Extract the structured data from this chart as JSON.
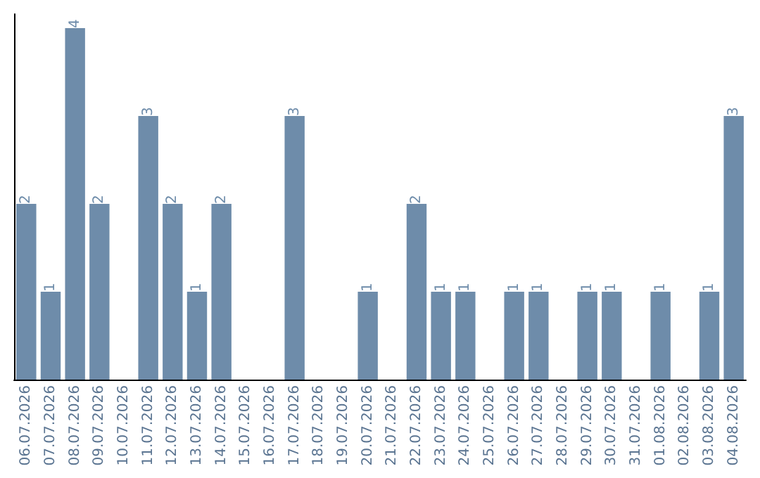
{
  "chart_data": {
    "type": "bar",
    "categories": [
      "06.07.2026",
      "07.07.2026",
      "08.07.2026",
      "09.07.2026",
      "10.07.2026",
      "11.07.2026",
      "12.07.2026",
      "13.07.2026",
      "14.07.2026",
      "15.07.2026",
      "16.07.2026",
      "17.07.2026",
      "18.07.2026",
      "19.07.2026",
      "20.07.2026",
      "21.07.2026",
      "22.07.2026",
      "23.07.2026",
      "24.07.2026",
      "25.07.2026",
      "26.07.2026",
      "27.07.2026",
      "28.07.2026",
      "29.07.2026",
      "30.07.2026",
      "31.07.2026",
      "01.08.2026",
      "02.08.2026",
      "03.08.2026",
      "04.08.2026"
    ],
    "values": [
      2,
      1,
      4,
      2,
      0,
      3,
      2,
      1,
      2,
      0,
      0,
      3,
      0,
      0,
      1,
      0,
      2,
      1,
      1,
      0,
      1,
      1,
      0,
      1,
      1,
      0,
      1,
      0,
      1,
      3
    ],
    "value_labels": [
      "2",
      "1",
      "4",
      "2",
      null,
      "3",
      "2",
      "1",
      "2",
      null,
      null,
      "3",
      null,
      null,
      "1",
      null,
      "2",
      "1",
      "1",
      null,
      "1",
      "1",
      null,
      "1",
      "1",
      null,
      "1",
      null,
      "1",
      "3"
    ],
    "color": "#6e8caa"
  }
}
